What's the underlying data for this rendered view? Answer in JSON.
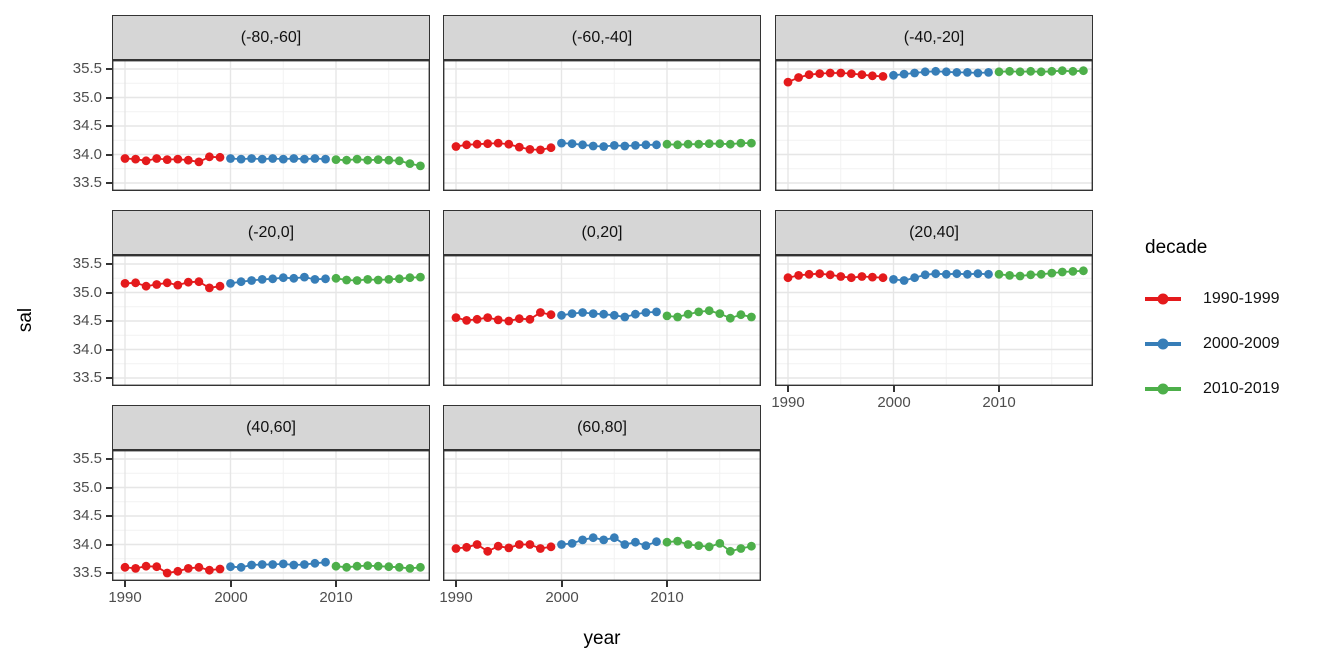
{
  "ylabel": "sal",
  "xlabel": "year",
  "legend": {
    "title": "decade",
    "entries": [
      {
        "label": "1990-1999",
        "color": "#E41A1C"
      },
      {
        "label": "2000-2009",
        "color": "#377EB8"
      },
      {
        "label": "2010-2019",
        "color": "#4DAF4A"
      }
    ]
  },
  "axes": {
    "y_tick_labels": [
      "35.5",
      "35.0",
      "34.5",
      "34.0",
      "33.5"
    ],
    "x_tick_labels": [
      "1990",
      "2000",
      "2010"
    ]
  },
  "chart_data": {
    "type": "line",
    "markers": true,
    "title": "",
    "xlabel": "year",
    "ylabel": "sal",
    "legend_title": "decade",
    "legend_position": "right",
    "grid": true,
    "x_step": 1,
    "x_breaks": [
      1990,
      2000,
      2010
    ],
    "y_breaks": [
      33.5,
      34.0,
      34.5,
      35.0,
      35.5
    ],
    "xlim": [
      1988.8,
      2018.8
    ],
    "ylim": [
      33.38,
      35.66
    ],
    "series_names": [
      "1990-1999",
      "2000-2009",
      "2010-2019"
    ],
    "series_colors": {
      "1990-1999": "#E41A1C",
      "2000-2009": "#377EB8",
      "2010-2019": "#4DAF4A"
    },
    "facets": [
      {
        "label": "(-80,-60]",
        "series": [
          {
            "name": "1990-1999",
            "start_year": 1990,
            "values": [
              33.93,
              33.92,
              33.89,
              33.93,
              33.91,
              33.92,
              33.9,
              33.87,
              33.96,
              33.95
            ]
          },
          {
            "name": "2000-2009",
            "start_year": 2000,
            "values": [
              33.93,
              33.92,
              33.93,
              33.92,
              33.93,
              33.92,
              33.93,
              33.92,
              33.93,
              33.92
            ]
          },
          {
            "name": "2010-2019",
            "start_year": 2010,
            "values": [
              33.91,
              33.9,
              33.92,
              33.9,
              33.91,
              33.9,
              33.89,
              33.84,
              33.8
            ]
          }
        ]
      },
      {
        "label": "(-60,-40]",
        "series": [
          {
            "name": "1990-1999",
            "start_year": 1990,
            "values": [
              34.14,
              34.17,
              34.18,
              34.19,
              34.2,
              34.18,
              34.13,
              34.09,
              34.08,
              34.12
            ]
          },
          {
            "name": "2000-2009",
            "start_year": 2000,
            "values": [
              34.2,
              34.19,
              34.17,
              34.15,
              34.14,
              34.16,
              34.15,
              34.16,
              34.17,
              34.17
            ]
          },
          {
            "name": "2010-2019",
            "start_year": 2010,
            "values": [
              34.18,
              34.17,
              34.18,
              34.18,
              34.19,
              34.19,
              34.18,
              34.2,
              34.2
            ]
          }
        ]
      },
      {
        "label": "(-40,-20]",
        "series": [
          {
            "name": "1990-1999",
            "start_year": 1990,
            "values": [
              35.27,
              35.35,
              35.4,
              35.42,
              35.43,
              35.43,
              35.42,
              35.4,
              35.38,
              35.37
            ]
          },
          {
            "name": "2000-2009",
            "start_year": 2000,
            "values": [
              35.39,
              35.41,
              35.43,
              35.45,
              35.46,
              35.45,
              35.44,
              35.44,
              35.43,
              35.44
            ]
          },
          {
            "name": "2010-2019",
            "start_year": 2010,
            "values": [
              35.45,
              35.46,
              35.45,
              35.46,
              35.45,
              35.46,
              35.47,
              35.46,
              35.47
            ]
          }
        ]
      },
      {
        "label": "(-20,0]",
        "series": [
          {
            "name": "1990-1999",
            "start_year": 1990,
            "values": [
              35.16,
              35.17,
              35.11,
              35.14,
              35.17,
              35.13,
              35.18,
              35.19,
              35.08,
              35.11
            ]
          },
          {
            "name": "2000-2009",
            "start_year": 2000,
            "values": [
              35.16,
              35.19,
              35.21,
              35.23,
              35.24,
              35.26,
              35.25,
              35.27,
              35.23,
              35.24
            ]
          },
          {
            "name": "2010-2019",
            "start_year": 2010,
            "values": [
              35.25,
              35.22,
              35.21,
              35.23,
              35.22,
              35.23,
              35.24,
              35.26,
              35.27
            ]
          }
        ]
      },
      {
        "label": "(0,20]",
        "series": [
          {
            "name": "1990-1999",
            "start_year": 1990,
            "values": [
              34.56,
              34.51,
              34.53,
              34.56,
              34.52,
              34.5,
              34.54,
              34.53,
              34.65,
              34.61
            ]
          },
          {
            "name": "2000-2009",
            "start_year": 2000,
            "values": [
              34.6,
              34.63,
              34.65,
              34.63,
              34.62,
              34.6,
              34.57,
              34.62,
              34.65,
              34.66
            ]
          },
          {
            "name": "2010-2019",
            "start_year": 2010,
            "values": [
              34.59,
              34.57,
              34.62,
              34.66,
              34.68,
              34.63,
              34.55,
              34.61,
              34.57
            ]
          }
        ]
      },
      {
        "label": "(20,40]",
        "series": [
          {
            "name": "1990-1999",
            "start_year": 1990,
            "values": [
              35.26,
              35.3,
              35.32,
              35.33,
              35.31,
              35.28,
              35.26,
              35.28,
              35.27,
              35.26
            ]
          },
          {
            "name": "2000-2009",
            "start_year": 2000,
            "values": [
              35.23,
              35.21,
              35.26,
              35.31,
              35.33,
              35.32,
              35.33,
              35.32,
              35.33,
              35.32
            ]
          },
          {
            "name": "2010-2019",
            "start_year": 2010,
            "values": [
              35.32,
              35.3,
              35.29,
              35.31,
              35.32,
              35.34,
              35.36,
              35.37,
              35.38
            ]
          }
        ]
      },
      {
        "label": "(40,60]",
        "series": [
          {
            "name": "1990-1999",
            "start_year": 1990,
            "values": [
              33.6,
              33.58,
              33.62,
              33.61,
              33.5,
              33.53,
              33.58,
              33.6,
              33.55,
              33.57
            ]
          },
          {
            "name": "2000-2009",
            "start_year": 2000,
            "values": [
              33.61,
              33.6,
              33.64,
              33.65,
              33.65,
              33.66,
              33.64,
              33.65,
              33.67,
              33.69
            ]
          },
          {
            "name": "2010-2019",
            "start_year": 2010,
            "values": [
              33.62,
              33.6,
              33.62,
              33.63,
              33.62,
              33.61,
              33.6,
              33.58,
              33.6
            ]
          }
        ]
      },
      {
        "label": "(60,80]",
        "series": [
          {
            "name": "1990-1999",
            "start_year": 1990,
            "values": [
              33.93,
              33.95,
              34.0,
              33.88,
              33.97,
              33.94,
              34.0,
              34.0,
              33.93,
              33.96
            ]
          },
          {
            "name": "2000-2009",
            "start_year": 2000,
            "values": [
              34.0,
              34.02,
              34.08,
              34.12,
              34.08,
              34.12,
              34.0,
              34.04,
              33.98,
              34.05
            ]
          },
          {
            "name": "2010-2019",
            "start_year": 2010,
            "values": [
              34.04,
              34.06,
              34.0,
              33.98,
              33.96,
              34.02,
              33.88,
              33.93,
              33.97
            ]
          }
        ]
      }
    ]
  }
}
